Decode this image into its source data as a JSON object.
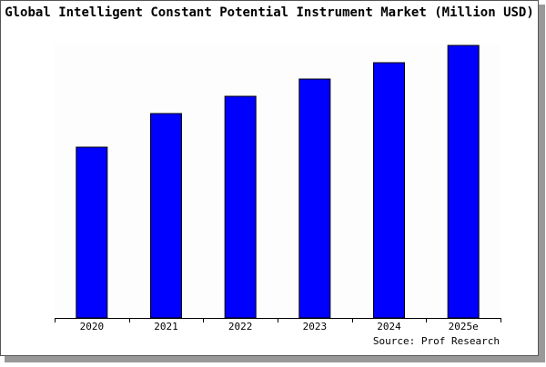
{
  "chart_data": {
    "type": "bar",
    "title": "Global Intelligent Constant Potential Instrument Market (Million USD)",
    "categories": [
      "2020",
      "2021",
      "2022",
      "2023",
      "2024",
      "2025e"
    ],
    "values": [
      188,
      225,
      244,
      263,
      281,
      300
    ],
    "color": "#0000ff",
    "ylim": [
      0,
      300
    ],
    "source": "Source: Prof Research"
  }
}
